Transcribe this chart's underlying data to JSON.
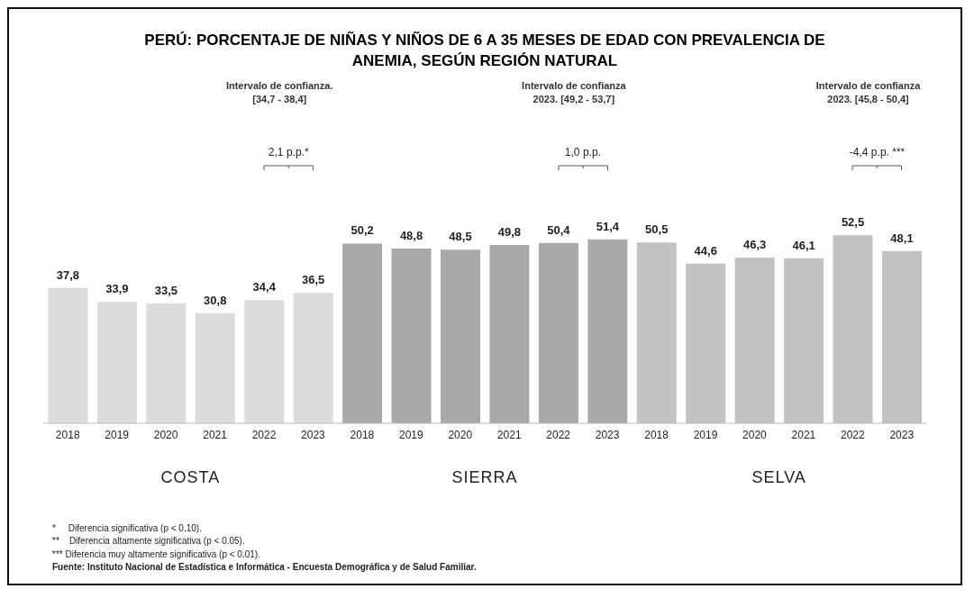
{
  "chart_data": {
    "type": "bar",
    "title": "PERÚ: PORCENTAJE DE NIÑAS Y NIÑOS DE 6 A 35 MESES DE EDAD CON PREVALENCIA DE ANEMIA, SEGÚN REGIÓN NATURAL",
    "categories": [
      "2018",
      "2019",
      "2020",
      "2021",
      "2022",
      "2023",
      "2018",
      "2019",
      "2020",
      "2021",
      "2022",
      "2023",
      "2018",
      "2019",
      "2020",
      "2021",
      "2022",
      "2023"
    ],
    "series": [
      {
        "name": "COSTA",
        "color": "#dcdcdc",
        "values": [
          37.8,
          33.9,
          33.5,
          30.8,
          34.4,
          36.5,
          null,
          null,
          null,
          null,
          null,
          null,
          null,
          null,
          null,
          null,
          null,
          null
        ],
        "value_labels": [
          "37,8",
          "33,9",
          "33,5",
          "30,8",
          "34,4",
          "36,5",
          null,
          null,
          null,
          null,
          null,
          null,
          null,
          null,
          null,
          null,
          null,
          null
        ]
      },
      {
        "name": "SIERRA",
        "color": "#a9a9a9",
        "values": [
          null,
          null,
          null,
          null,
          null,
          null,
          50.2,
          48.8,
          48.5,
          49.8,
          50.4,
          51.4,
          null,
          null,
          null,
          null,
          null,
          null
        ],
        "value_labels": [
          null,
          null,
          null,
          null,
          null,
          null,
          "50,2",
          "48,8",
          "48,5",
          "49,8",
          "50,4",
          "51,4",
          null,
          null,
          null,
          null,
          null,
          null
        ]
      },
      {
        "name": "SELVA",
        "color": "#c2c2c2",
        "values": [
          null,
          null,
          null,
          null,
          null,
          null,
          null,
          null,
          null,
          null,
          null,
          null,
          50.5,
          44.6,
          46.3,
          46.1,
          52.5,
          48.1
        ],
        "value_labels": [
          null,
          null,
          null,
          null,
          null,
          null,
          null,
          null,
          null,
          null,
          null,
          null,
          "50,5",
          "44,6",
          "46,3",
          "46,1",
          "52,5",
          "48,1"
        ]
      }
    ],
    "annotations": [
      "Intervalo de confianza. [34,7 - 38,4]",
      "2,1 p.p.*",
      "Intervalo de confianza 2023. [49,2 - 53,7]",
      "1,0 p.p.",
      "Intervalo de confianza 2023. [45,8 - 50,4]",
      "-4,4 p.p. ***",
      "*     Diferencia significativa (p < 0.10).",
      "**    Diferencia altamente significativa (p < 0.05).",
      "*** Diferencia muy altamente significativa (p < 0.01).",
      "Fuente: Instituto Nacional de Estadística e Informática - Encuesta Demográfica y de Salud Familiar."
    ]
  }
}
